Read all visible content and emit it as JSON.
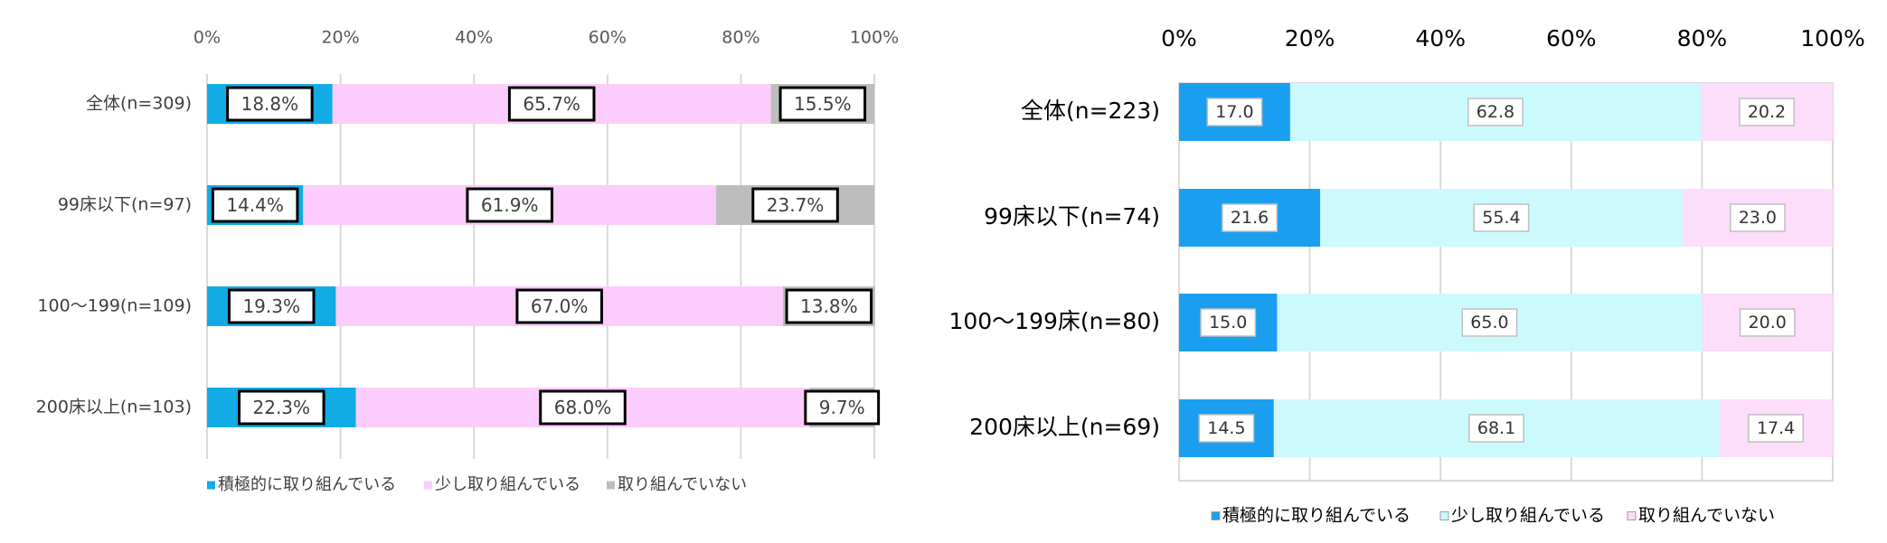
{
  "chart_data": [
    {
      "type": "bar",
      "orientation": "horizontal",
      "stacked": true,
      "title": "",
      "xlabel": "",
      "ylabel": "",
      "xlim": [
        0,
        100
      ],
      "xticks": [
        "0%",
        "20%",
        "40%",
        "60%",
        "80%",
        "100%"
      ],
      "grid": true,
      "legend_position": "bottom",
      "value_format": "percent_suffix",
      "categories": [
        "全体(n=309)",
        "99床以下(n=97)",
        "100～199(n=109)",
        "200床以上(n=103)"
      ],
      "series": [
        {
          "name": "積極的に取り組んでいる",
          "values": [
            18.8,
            14.4,
            19.3,
            22.3
          ],
          "color": "#11ACE6"
        },
        {
          "name": "少し取り組んでいる",
          "values": [
            65.7,
            61.9,
            67.0,
            68.0
          ],
          "color": "#FCCCFC"
        },
        {
          "name": "取り組んでいない",
          "values": [
            15.5,
            23.7,
            13.8,
            9.7
          ],
          "color": "#BDBDBD"
        }
      ]
    },
    {
      "type": "bar",
      "orientation": "horizontal",
      "stacked": true,
      "title": "",
      "xlabel": "",
      "ylabel": "",
      "xlim": [
        0,
        100
      ],
      "xticks": [
        "0%",
        "20%",
        "40%",
        "60%",
        "80%",
        "100%"
      ],
      "grid": true,
      "legend_position": "bottom",
      "value_format": "plain",
      "categories": [
        "全体(n=223)",
        "99床以下(n=74)",
        "100～199床(n=80)",
        "200床以上(n=69)"
      ],
      "series": [
        {
          "name": "積極的に取り組んでいる",
          "values": [
            17.0,
            21.6,
            15.0,
            14.5
          ],
          "color": "#1A9FF0"
        },
        {
          "name": "少し取り組んでいる",
          "values": [
            62.8,
            55.4,
            65.0,
            68.1
          ],
          "color": "#CCFAFC"
        },
        {
          "name": "取り組んでいない",
          "values": [
            20.2,
            23.0,
            20.0,
            17.4
          ],
          "color": "#FCDDFA"
        }
      ]
    }
  ]
}
